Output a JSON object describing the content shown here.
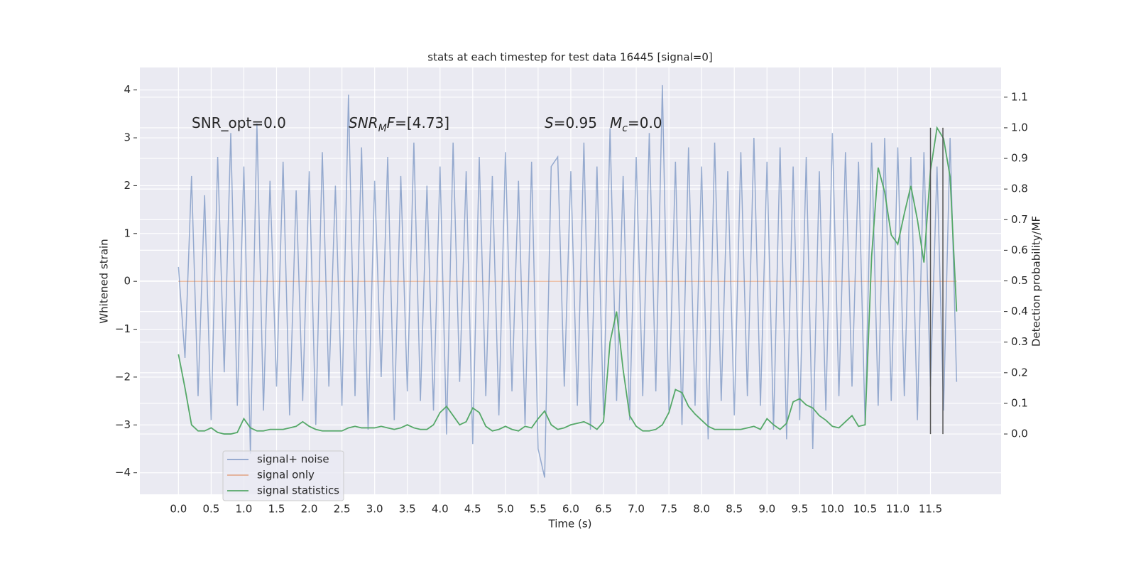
{
  "chart_data": {
    "type": "line",
    "title": "stats at each timestep for test data 16445 [signal=0]",
    "x_label": "Time (s)",
    "y_label": "Whitened strain",
    "y2_label": "Detection probability/MF",
    "annotations": [
      [
        "SNR_opt=0.0"
      ],
      [
        "SNR",
        "M",
        "F",
        "=[4.73]"
      ],
      [
        "S",
        "=0.95"
      ],
      [
        "M",
        "c",
        "=0.0"
      ]
    ],
    "x": [
      0.0,
      0.1,
      0.2,
      0.3,
      0.4,
      0.5,
      0.6,
      0.7,
      0.8,
      0.9,
      1.0,
      1.1,
      1.2,
      1.3,
      1.4,
      1.5,
      1.6,
      1.7,
      1.8,
      1.9,
      2.0,
      2.1,
      2.2,
      2.3,
      2.4,
      2.5,
      2.6,
      2.7,
      2.8,
      2.9,
      3.0,
      3.1,
      3.2,
      3.3,
      3.4,
      3.5,
      3.6,
      3.7,
      3.8,
      3.9,
      4.0,
      4.1,
      4.2,
      4.3,
      4.4,
      4.5,
      4.6,
      4.7,
      4.8,
      4.9,
      5.0,
      5.1,
      5.2,
      5.3,
      5.4,
      5.5,
      5.6,
      5.7,
      5.8,
      5.9,
      6.0,
      6.1,
      6.2,
      6.3,
      6.4,
      6.5,
      6.6,
      6.7,
      6.8,
      6.9,
      7.0,
      7.1,
      7.2,
      7.3,
      7.4,
      7.5,
      7.6,
      7.7,
      7.8,
      7.9,
      8.0,
      8.1,
      8.2,
      8.3,
      8.4,
      8.5,
      8.6,
      8.7,
      8.8,
      8.9,
      9.0,
      9.1,
      9.2,
      9.3,
      9.4,
      9.5,
      9.6,
      9.7,
      9.8,
      9.9,
      10.0,
      10.1,
      10.2,
      10.3,
      10.4,
      10.5,
      10.6,
      10.7,
      10.8,
      10.9,
      11.0,
      11.1,
      11.2,
      11.3,
      11.4,
      11.5,
      11.6,
      11.7,
      11.8,
      11.9
    ],
    "series": [
      {
        "name": "signal+ noise",
        "color": "#4c72b0",
        "values": [
          0.3,
          -1.6,
          2.2,
          -2.4,
          1.8,
          -2.9,
          2.6,
          -1.9,
          3.1,
          -2.6,
          2.4,
          -3.6,
          3.3,
          -2.7,
          2.1,
          -2.2,
          2.5,
          -2.8,
          1.9,
          -2.5,
          2.3,
          -3.0,
          2.7,
          -2.2,
          2.0,
          -2.6,
          3.9,
          -2.4,
          2.8,
          -3.1,
          2.1,
          -2.0,
          2.6,
          -2.9,
          2.2,
          -2.3,
          2.9,
          -2.5,
          2.0,
          -2.7,
          2.4,
          -3.2,
          2.9,
          -2.1,
          2.3,
          -3.4,
          2.6,
          -2.4,
          2.2,
          -2.8,
          2.7,
          -2.3,
          2.1,
          -3.0,
          2.5,
          -3.5,
          -4.1,
          2.4,
          2.6,
          -2.2,
          2.3,
          -2.6,
          2.9,
          -3.1,
          2.4,
          -2.8,
          3.2,
          -2.5,
          2.2,
          -2.9,
          2.6,
          -2.4,
          3.1,
          -2.3,
          4.1,
          -2.7,
          2.5,
          -3.0,
          2.8,
          -2.6,
          2.4,
          -3.3,
          2.9,
          -2.5,
          2.3,
          -2.8,
          2.7,
          -2.4,
          3.0,
          -2.6,
          2.5,
          -3.1,
          2.8,
          -3.3,
          2.4,
          -2.9,
          2.6,
          -3.5,
          2.3,
          -2.7,
          3.1,
          -2.4,
          2.7,
          -2.2,
          2.5,
          -3.0,
          2.9,
          -2.6,
          3.0,
          -2.5,
          2.8,
          -2.4,
          2.6,
          -2.9,
          2.7,
          -2.2,
          2.4,
          -2.7,
          3.0,
          -2.1
        ]
      },
      {
        "name": "signal only",
        "color": "#dd8452",
        "values": [
          0,
          0,
          0,
          0,
          0,
          0,
          0,
          0,
          0,
          0,
          0,
          0,
          0,
          0,
          0,
          0,
          0,
          0,
          0,
          0,
          0,
          0,
          0,
          0,
          0,
          0,
          0,
          0,
          0,
          0,
          0,
          0,
          0,
          0,
          0,
          0,
          0,
          0,
          0,
          0,
          0,
          0,
          0,
          0,
          0,
          0,
          0,
          0,
          0,
          0,
          0,
          0,
          0,
          0,
          0,
          0,
          0,
          0,
          0,
          0,
          0,
          0,
          0,
          0,
          0,
          0,
          0,
          0,
          0,
          0,
          0,
          0,
          0,
          0,
          0,
          0,
          0,
          0,
          0,
          0,
          0,
          0,
          0,
          0,
          0,
          0,
          0,
          0,
          0,
          0,
          0,
          0,
          0,
          0,
          0,
          0,
          0,
          0,
          0,
          0,
          0,
          0,
          0,
          0,
          0,
          0,
          0,
          0,
          0,
          0,
          0,
          0,
          0,
          0,
          0,
          0,
          0,
          0,
          0,
          0
        ]
      },
      {
        "name": "signal statistics",
        "color": "#55a868",
        "axis": "y2",
        "values": [
          0.26,
          0.15,
          0.03,
          0.01,
          0.01,
          0.02,
          0.005,
          0.0,
          0.0,
          0.005,
          0.05,
          0.02,
          0.01,
          0.01,
          0.015,
          0.015,
          0.015,
          0.02,
          0.025,
          0.04,
          0.025,
          0.015,
          0.01,
          0.01,
          0.01,
          0.01,
          0.02,
          0.025,
          0.02,
          0.02,
          0.02,
          0.025,
          0.02,
          0.015,
          0.02,
          0.03,
          0.02,
          0.015,
          0.015,
          0.03,
          0.07,
          0.09,
          0.06,
          0.03,
          0.04,
          0.085,
          0.07,
          0.025,
          0.01,
          0.015,
          0.025,
          0.015,
          0.01,
          0.025,
          0.02,
          0.05,
          0.075,
          0.03,
          0.015,
          0.02,
          0.03,
          0.035,
          0.04,
          0.03,
          0.015,
          0.04,
          0.3,
          0.4,
          0.21,
          0.06,
          0.025,
          0.01,
          0.01,
          0.015,
          0.03,
          0.07,
          0.145,
          0.135,
          0.09,
          0.065,
          0.045,
          0.025,
          0.015,
          0.015,
          0.015,
          0.015,
          0.015,
          0.02,
          0.025,
          0.015,
          0.05,
          0.03,
          0.015,
          0.035,
          0.105,
          0.115,
          0.095,
          0.085,
          0.06,
          0.045,
          0.025,
          0.02,
          0.04,
          0.06,
          0.025,
          0.03,
          0.58,
          0.87,
          0.79,
          0.65,
          0.62,
          0.72,
          0.81,
          0.7,
          0.56,
          0.86,
          1.0,
          0.965,
          0.84,
          0.4
        ]
      }
    ],
    "vlines": [
      {
        "x": 11.5,
        "ymin": 0,
        "ymax": 1
      },
      {
        "x": 11.69,
        "ymin": 0,
        "ymax": 1
      }
    ],
    "vline_color": "#555555",
    "xlim": [
      -0.59,
      12.58
    ],
    "ylim": [
      -4.45,
      4.47
    ],
    "y2lim": [
      -0.197,
      1.197
    ],
    "xticks": [
      {
        "value": 0,
        "label": "0.0"
      },
      0.5,
      {
        "value": 1,
        "label": "1.0"
      },
      1.5,
      {
        "value": 2,
        "label": "2.0"
      },
      2.5,
      {
        "value": 3,
        "label": "3.0"
      },
      3.5,
      {
        "value": 4,
        "label": "4.0"
      },
      4.5,
      {
        "value": 5,
        "label": "5.0"
      },
      5.5,
      {
        "value": 6,
        "label": "6.0"
      },
      6.5,
      {
        "value": 7,
        "label": "7.0"
      },
      7.5,
      {
        "value": 8,
        "label": "8.0"
      },
      8.5,
      {
        "value": 9,
        "label": "9.0"
      },
      9.5,
      {
        "value": 10,
        "label": "10.0"
      },
      10.5,
      {
        "value": 11,
        "label": "11.0"
      },
      11.5
    ],
    "yticks": [
      {
        "value": -4,
        "label": "−4"
      },
      {
        "value": -3,
        "label": "−3"
      },
      {
        "value": -2,
        "label": "−2"
      },
      {
        "value": -1,
        "label": "−1"
      },
      0,
      1,
      2,
      3,
      4
    ],
    "y2ticks": [
      {
        "value": 0,
        "label": "0.0"
      },
      0.1,
      0.2,
      0.3,
      0.4,
      0.5,
      0.6,
      0.7,
      0.8,
      0.9,
      {
        "value": 1,
        "label": "1.0"
      },
      1.1
    ],
    "grid": true,
    "legend": "lower left"
  }
}
